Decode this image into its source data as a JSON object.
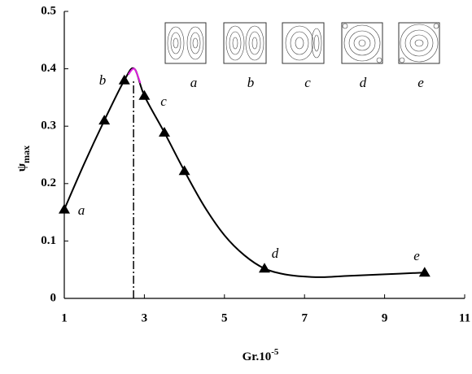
{
  "chart_data": {
    "type": "line",
    "xlabel": {
      "main": "Gr.10",
      "sup": "-5"
    },
    "ylabel": {
      "main": "ψ",
      "sub": "max"
    },
    "xlim": [
      1,
      11
    ],
    "xticks": [
      1,
      3,
      5,
      7,
      9,
      11
    ],
    "ylim": [
      0,
      0.5
    ],
    "yticks": [
      0,
      0.1,
      0.2,
      0.3,
      0.4,
      0.5
    ],
    "series": [
      {
        "color": "#000000",
        "marker": "none",
        "x": [
          1,
          1.5,
          2,
          2.5,
          2.75,
          3,
          3.5,
          4,
          4.5,
          5,
          5.5,
          6,
          6.5,
          7,
          7.5,
          8,
          9,
          10
        ],
        "values": [
          0.155,
          0.235,
          0.31,
          0.38,
          0.4,
          0.353,
          0.289,
          0.222,
          0.16,
          0.11,
          0.075,
          0.052,
          0.042,
          0.038,
          0.037,
          0.039,
          0.042,
          0.045
        ]
      },
      {
        "color": "#e020e0",
        "marker": "none",
        "x": [
          2.6,
          2.75,
          2.9
        ],
        "values": [
          0.39,
          0.4,
          0.375
        ]
      },
      {
        "color": "#000000",
        "marker": "triangle",
        "x": [
          1,
          2,
          2.5,
          3,
          3.5,
          4,
          6,
          10
        ],
        "values": [
          0.155,
          0.31,
          0.38,
          0.353,
          0.289,
          0.222,
          0.052,
          0.045
        ]
      }
    ],
    "reference_x": 2.73,
    "point_labels": [
      "a",
      "b",
      "c",
      "d",
      "e"
    ],
    "inset_labels": [
      "a",
      "b",
      "c",
      "d",
      "e"
    ]
  }
}
